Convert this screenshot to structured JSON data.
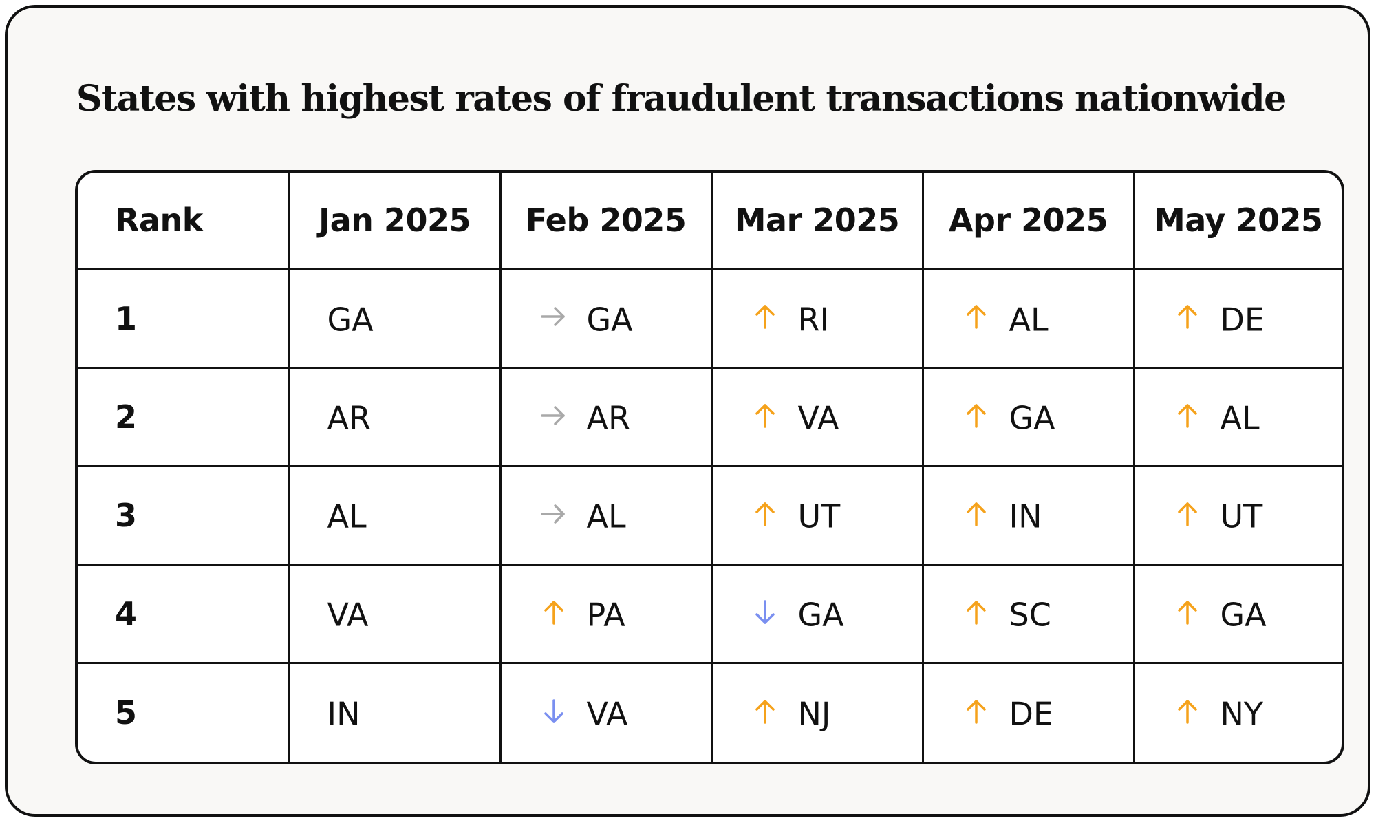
{
  "chart_data": {
    "type": "table",
    "title": "States with highest rates of fraudulent transactions nationwide",
    "columns": [
      "Rank",
      "Jan 2025",
      "Feb 2025",
      "Mar 2025",
      "Apr 2025",
      "May 2025"
    ],
    "rows": [
      {
        "rank": "1",
        "cells": [
          {
            "state": "GA",
            "trend": "none"
          },
          {
            "state": "GA",
            "trend": "same"
          },
          {
            "state": "RI",
            "trend": "up"
          },
          {
            "state": "AL",
            "trend": "up"
          },
          {
            "state": "DE",
            "trend": "up"
          }
        ]
      },
      {
        "rank": "2",
        "cells": [
          {
            "state": "AR",
            "trend": "none"
          },
          {
            "state": "AR",
            "trend": "same"
          },
          {
            "state": "VA",
            "trend": "up"
          },
          {
            "state": "GA",
            "trend": "up"
          },
          {
            "state": "AL",
            "trend": "up"
          }
        ]
      },
      {
        "rank": "3",
        "cells": [
          {
            "state": "AL",
            "trend": "none"
          },
          {
            "state": "AL",
            "trend": "same"
          },
          {
            "state": "UT",
            "trend": "up"
          },
          {
            "state": "IN",
            "trend": "up"
          },
          {
            "state": "UT",
            "trend": "up"
          }
        ]
      },
      {
        "rank": "4",
        "cells": [
          {
            "state": "VA",
            "trend": "none"
          },
          {
            "state": "PA",
            "trend": "up"
          },
          {
            "state": "GA",
            "trend": "down"
          },
          {
            "state": "SC",
            "trend": "up"
          },
          {
            "state": "GA",
            "trend": "up"
          }
        ]
      },
      {
        "rank": "5",
        "cells": [
          {
            "state": "IN",
            "trend": "none"
          },
          {
            "state": "VA",
            "trend": "down"
          },
          {
            "state": "NJ",
            "trend": "up"
          },
          {
            "state": "DE",
            "trend": "up"
          },
          {
            "state": "NY",
            "trend": "up"
          }
        ]
      }
    ]
  },
  "colors": {
    "up": "#f5a21b",
    "down": "#7a8ff0",
    "same": "#a9a9a9",
    "text": "#111111",
    "card_background": "#f9f8f6"
  }
}
